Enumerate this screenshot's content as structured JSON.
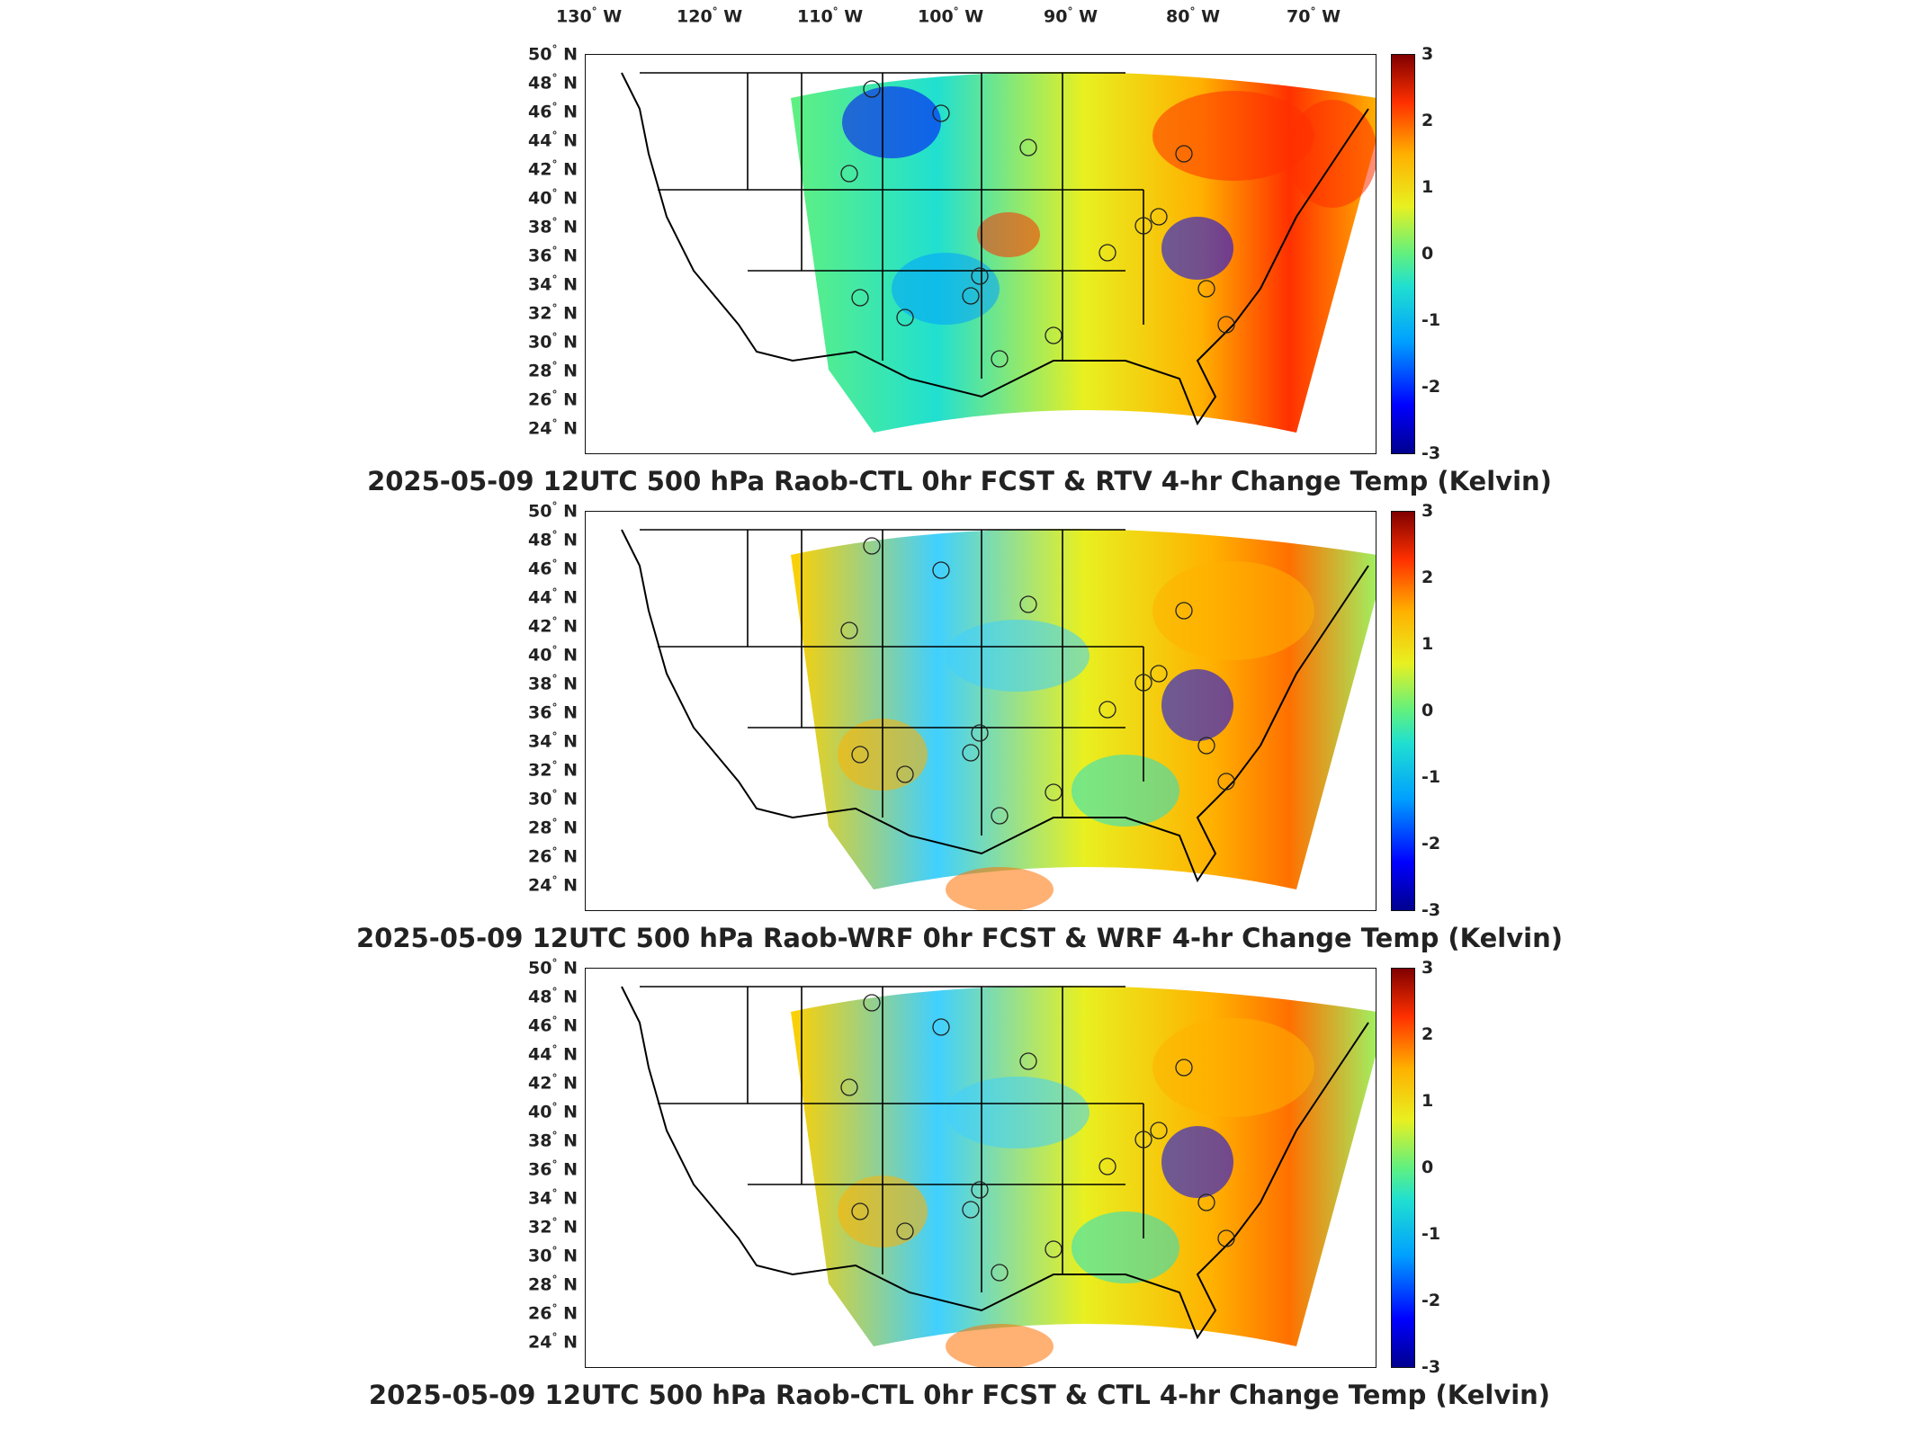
{
  "lon_labels": [
    "130",
    "120",
    "110",
    "100",
    "90",
    "80",
    "70"
  ],
  "lon_suffix": "W",
  "lat_labels": [
    "50",
    "48",
    "46",
    "44",
    "42",
    "40",
    "38",
    "36",
    "34",
    "32",
    "30",
    "28",
    "26",
    "24"
  ],
  "lat_suffix": "N",
  "degree": "°",
  "colorbar_ticks": [
    "3",
    "2",
    "1",
    "0",
    "-1",
    "-2",
    "-3"
  ],
  "colors": {
    "cold": "#0000ff",
    "neutral": "#60f080",
    "warm": "#ff3000"
  },
  "panels": [
    {
      "title": "2025-05-09 12UTC 500 hPa Raob-CTL 0hr FCST & RTV 4-hr Change Temp (Kelvin)"
    },
    {
      "title": "2025-05-09 12UTC 500 hPa Raob-WRF 0hr FCST & WRF 4-hr Change Temp (Kelvin)"
    },
    {
      "title": "2025-05-09 12UTC 500 hPa Raob-CTL 0hr FCST & CTL 4-hr Change Temp (Kelvin)"
    }
  ]
}
